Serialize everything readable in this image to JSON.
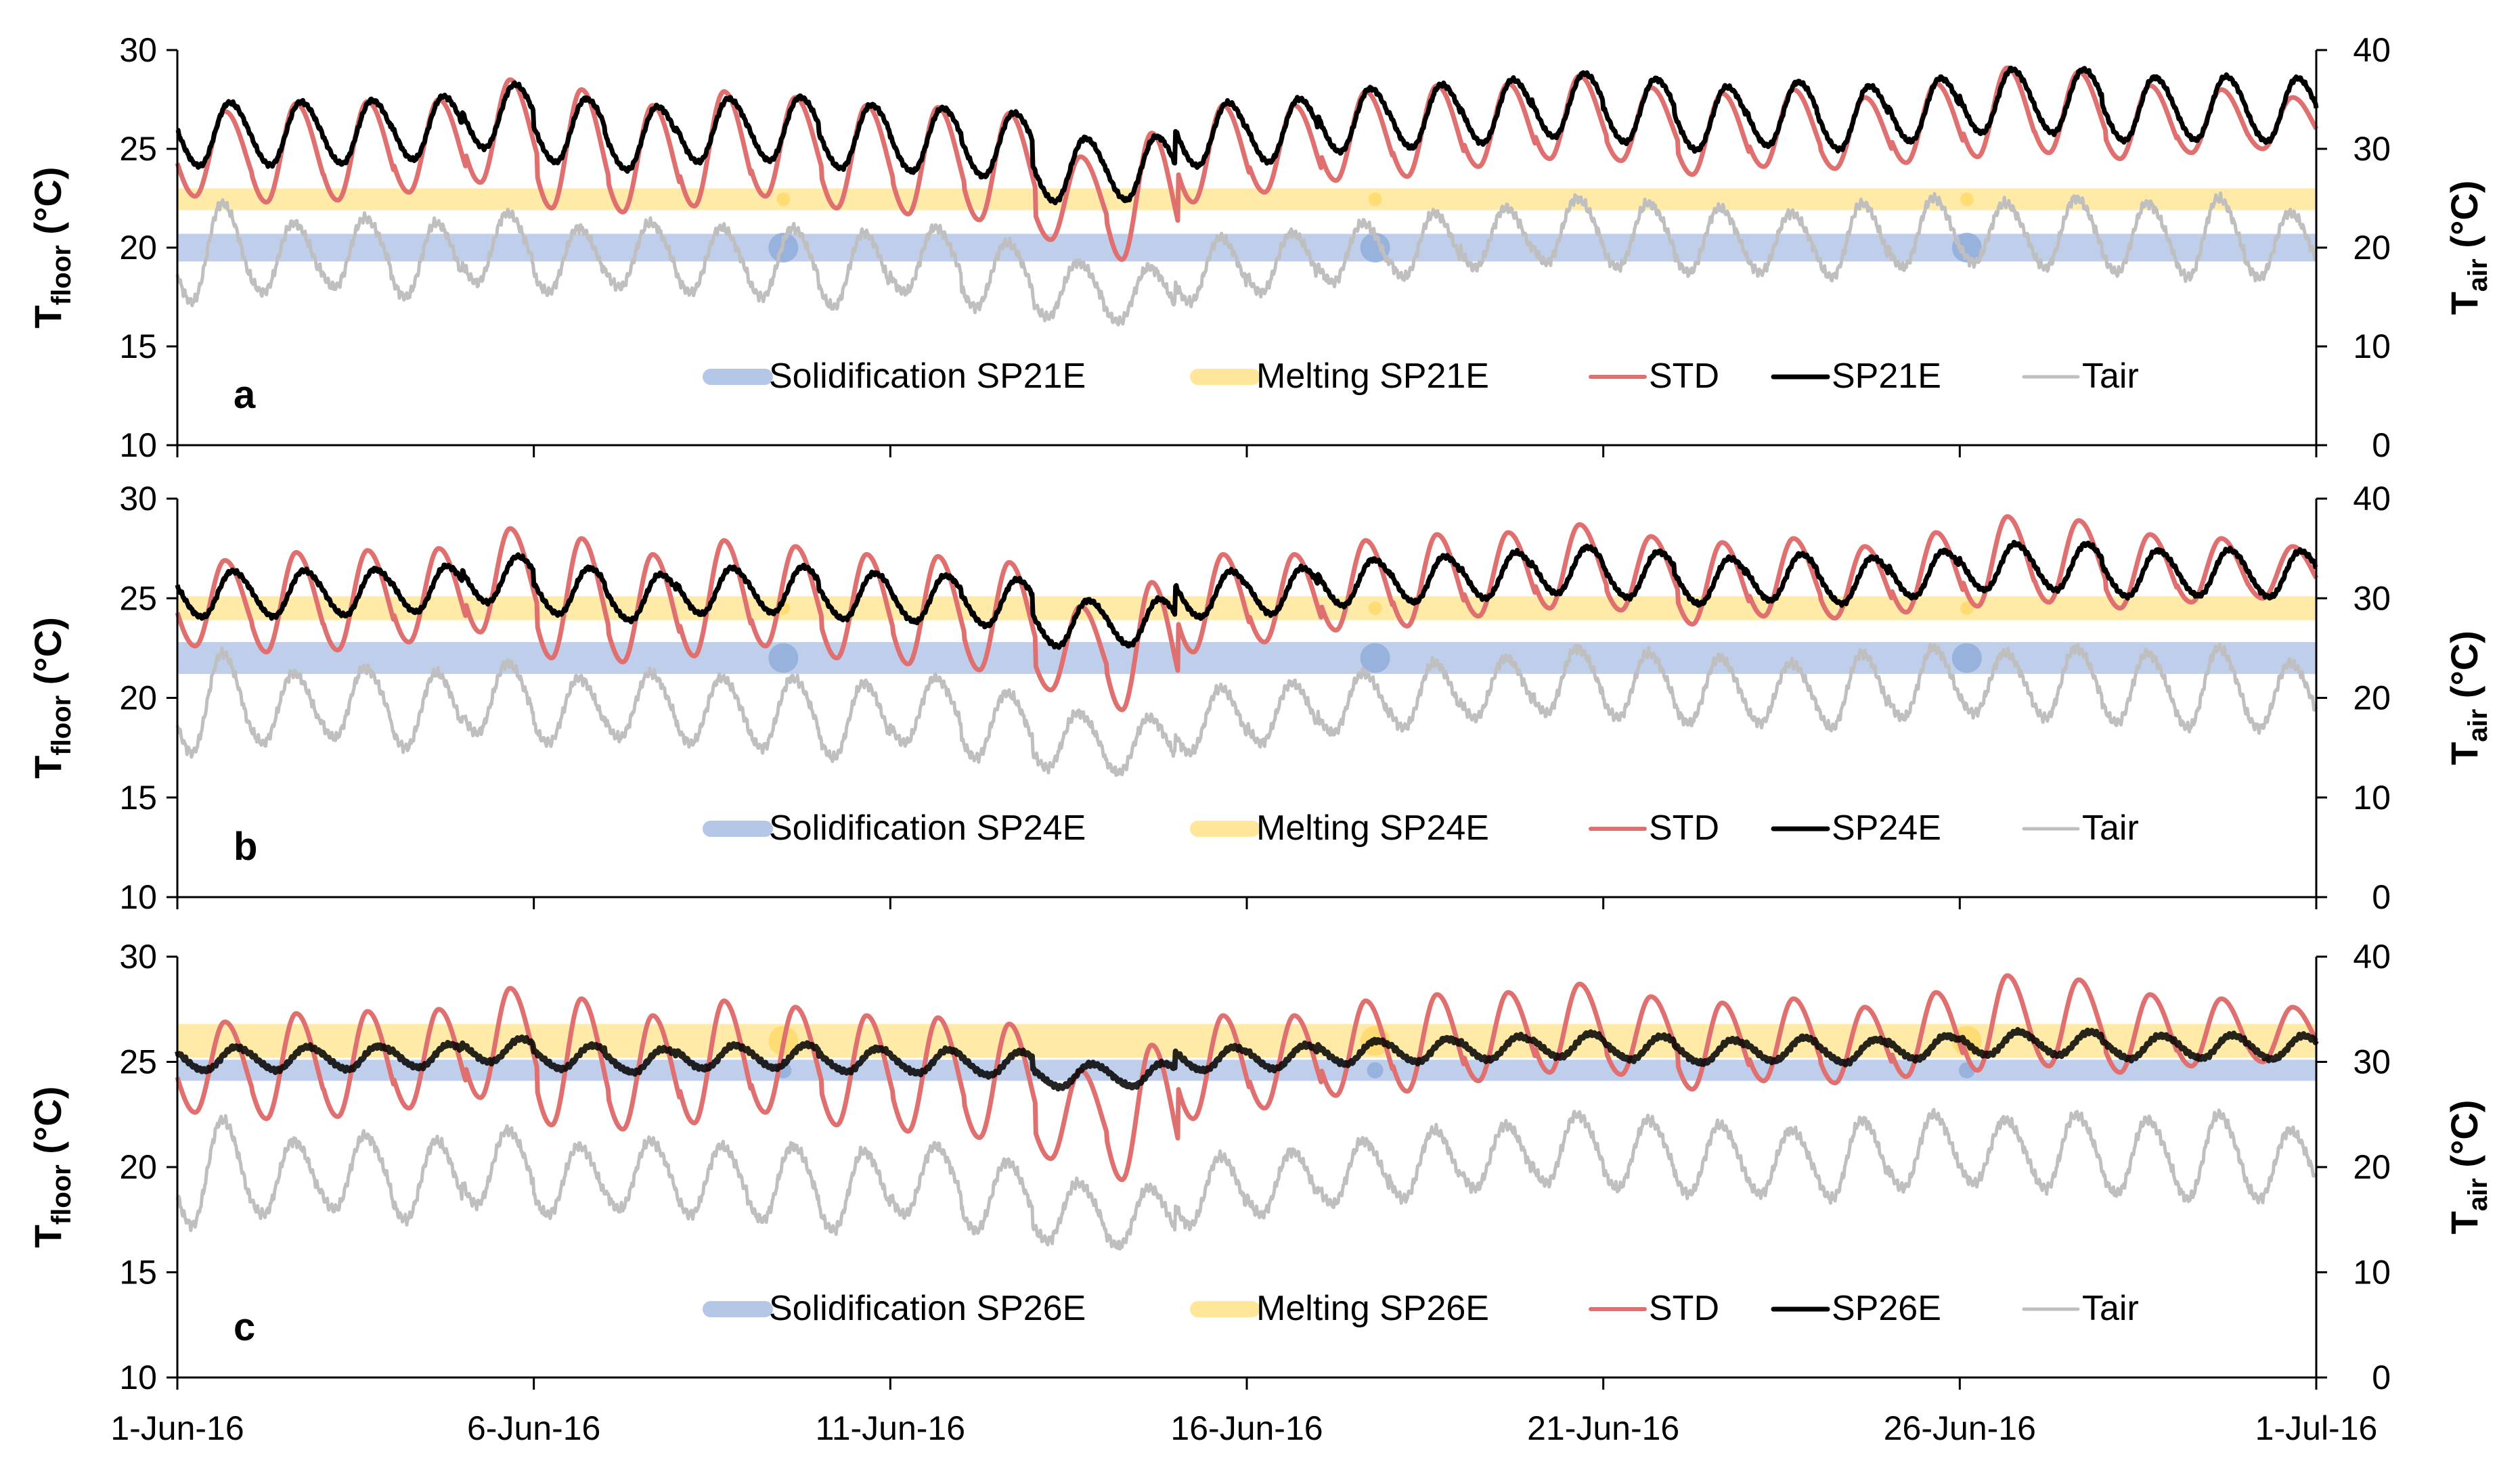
{
  "chart_data": {
    "type": "line",
    "x": {
      "tick_labels": [
        "1-Jun-16",
        "6-Jun-16",
        "11-Jun-16",
        "16-Jun-16",
        "21-Jun-16",
        "26-Jun-16",
        "1-Jul-16"
      ],
      "range_days": [
        0,
        30
      ]
    },
    "left_axis": {
      "label_main": "T",
      "label_sub": "floor",
      "label_unit": " (°C)",
      "ylim": [
        10,
        30
      ],
      "ticks": [
        10,
        15,
        20,
        25,
        30
      ]
    },
    "right_axis": {
      "label_main": "T",
      "label_sub": "air",
      "label_unit": " (°C)",
      "ylim": [
        0,
        40
      ],
      "ticks": [
        0,
        10,
        20,
        30,
        40
      ]
    },
    "colors": {
      "solidification": "#b4c7e7",
      "melting": "#ffe699",
      "std": "#e07070",
      "pcm": "#000000",
      "tair": "#bfbfbf",
      "axis": "#000000"
    },
    "panels": [
      {
        "letter": "a",
        "solidification_band": [
          19.3,
          20.7
        ],
        "melting_band": [
          21.9,
          23.0
        ],
        "legend": [
          "Solidification SP21E",
          "Melting SP21E",
          "STD",
          "SP21E",
          "Tair"
        ],
        "pcm": {
          "name": "SP21E",
          "mean": 26.1,
          "amplitude": 1.6,
          "phase_shift_h": 2.5
        }
      },
      {
        "letter": "b",
        "solidification_band": [
          21.2,
          22.8
        ],
        "melting_band": [
          23.9,
          25.1
        ],
        "legend": [
          "Solidification SP24E",
          "Melting SP24E",
          "STD",
          "SP24E",
          "Tair"
        ],
        "pcm": {
          "name": "SP24E",
          "mean": 25.5,
          "amplitude": 1.15,
          "phase_shift_h": 3.5
        }
      },
      {
        "letter": "c",
        "solidification_band": [
          24.1,
          25.1
        ],
        "melting_band": [
          25.2,
          26.8
        ],
        "legend": [
          "Solidification SP26E",
          "Melting SP26E",
          "STD",
          "SP26E",
          "Tair"
        ],
        "pcm": {
          "name": "SP26E",
          "mean": 25.3,
          "amplitude": 0.55,
          "phase_shift_h": 4.5
        }
      }
    ],
    "std_daily": [
      [
        26.9,
        22.6
      ],
      [
        27.3,
        22.3
      ],
      [
        27.4,
        22.4
      ],
      [
        27.5,
        22.8
      ],
      [
        28.5,
        23.3
      ],
      [
        28.0,
        22.0
      ],
      [
        27.2,
        21.8
      ],
      [
        27.9,
        22.1
      ],
      [
        27.6,
        22.6
      ],
      [
        27.2,
        22.0
      ],
      [
        27.1,
        21.7
      ],
      [
        26.8,
        21.4
      ],
      [
        24.6,
        20.4
      ],
      [
        25.8,
        19.4
      ],
      [
        27.2,
        22.3
      ],
      [
        27.2,
        22.8
      ],
      [
        27.9,
        23.4
      ],
      [
        28.2,
        23.6
      ],
      [
        28.3,
        24.1
      ],
      [
        28.7,
        24.5
      ],
      [
        28.1,
        24.4
      ],
      [
        27.8,
        23.7
      ],
      [
        28.0,
        24.1
      ],
      [
        27.6,
        24.0
      ],
      [
        28.3,
        24.3
      ],
      [
        29.1,
        24.6
      ],
      [
        28.9,
        24.8
      ],
      [
        28.2,
        24.5
      ],
      [
        28.0,
        24.8
      ],
      [
        27.6,
        25.0
      ]
    ],
    "tair_daily": [
      [
        24.5,
        14.5
      ],
      [
        22.5,
        15.5
      ],
      [
        23.0,
        16.0
      ],
      [
        22.5,
        15.0
      ],
      [
        23.5,
        16.5
      ],
      [
        22.0,
        15.5
      ],
      [
        22.5,
        16.0
      ],
      [
        22.0,
        15.5
      ],
      [
        22.0,
        15.0
      ],
      [
        21.5,
        14.0
      ],
      [
        22.0,
        15.5
      ],
      [
        20.5,
        14.0
      ],
      [
        18.5,
        13.0
      ],
      [
        18.0,
        12.5
      ],
      [
        21.0,
        14.5
      ],
      [
        21.5,
        15.5
      ],
      [
        22.5,
        16.5
      ],
      [
        23.5,
        17.0
      ],
      [
        24.0,
        18.0
      ],
      [
        25.0,
        18.5
      ],
      [
        24.5,
        18.0
      ],
      [
        24.0,
        17.5
      ],
      [
        23.5,
        17.5
      ],
      [
        24.5,
        17.0
      ],
      [
        25.0,
        18.0
      ],
      [
        24.5,
        18.5
      ],
      [
        25.0,
        18.0
      ],
      [
        24.5,
        17.5
      ],
      [
        25.0,
        17.0
      ],
      [
        23.5,
        17.0
      ]
    ]
  }
}
